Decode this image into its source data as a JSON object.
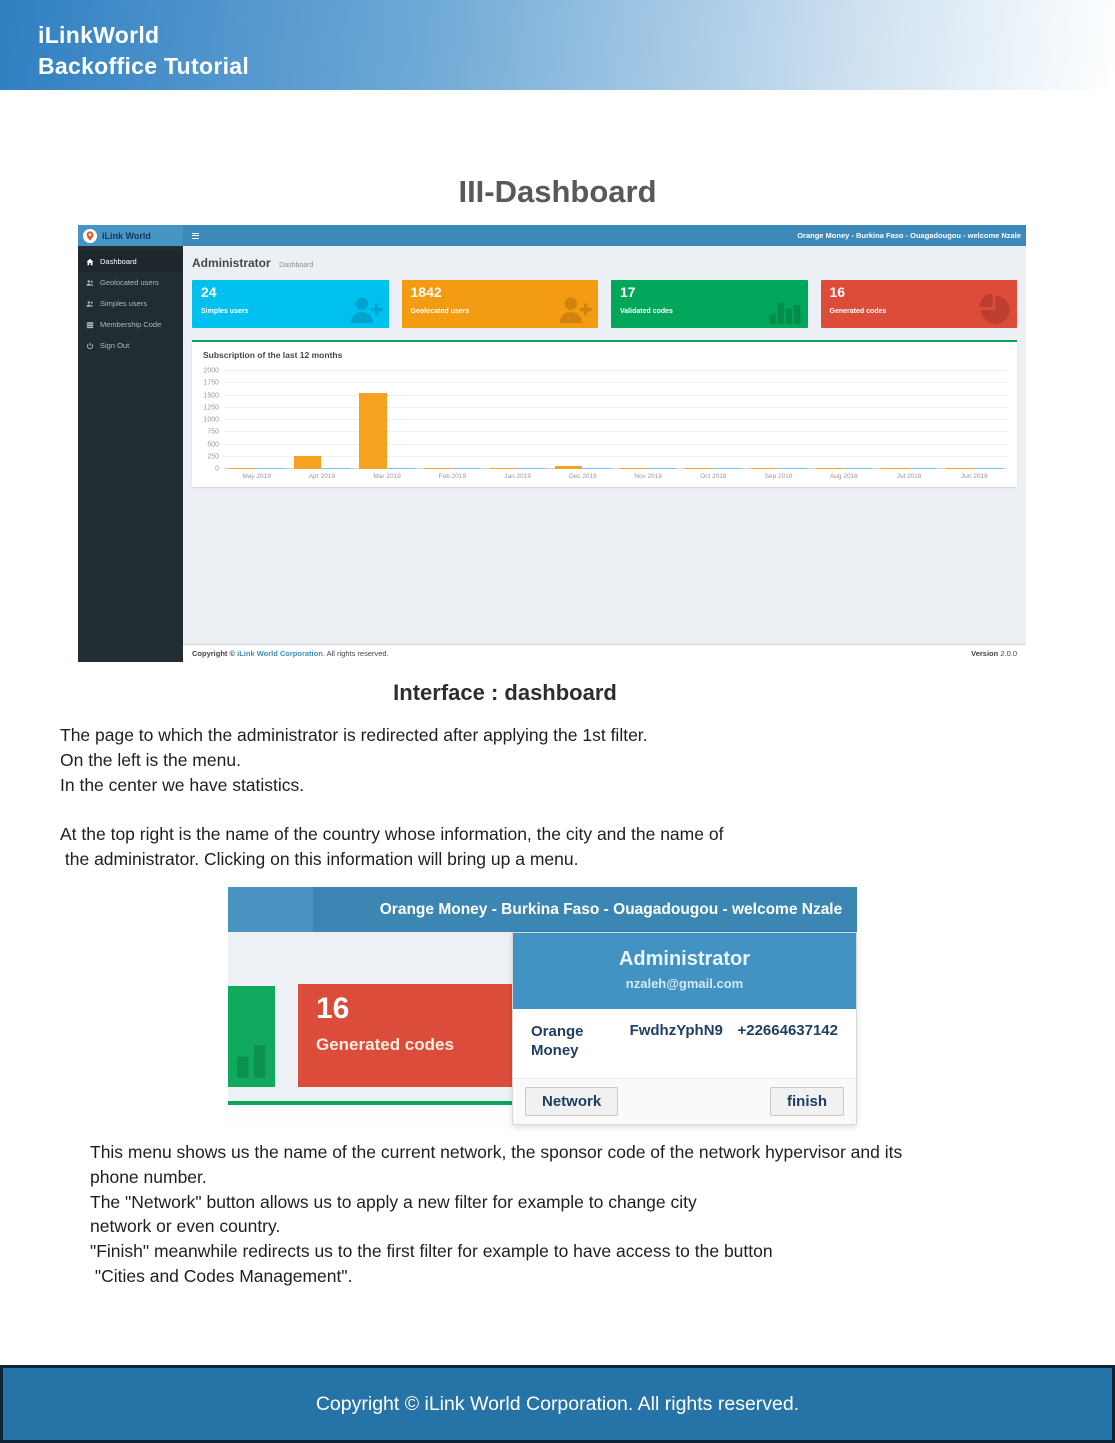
{
  "banner": {
    "title": "iLinkWorld",
    "subtitle": "Backoffice Tutorial"
  },
  "section_title": "III-Dashboard",
  "dashboard": {
    "brand": "iLink World",
    "user_info": "Orange Money - Burkina Faso - Ouagadougou - welcome Nzale",
    "sidebar": [
      {
        "label": "Dashboard",
        "icon": "home-icon",
        "active": true
      },
      {
        "label": "Geolocated users",
        "icon": "users-icon"
      },
      {
        "label": "Simples users",
        "icon": "users-icon"
      },
      {
        "label": "Membership Code",
        "icon": "list-icon"
      },
      {
        "label": "Sign Out",
        "icon": "power-icon"
      }
    ],
    "heading": {
      "title": "Administrator",
      "subtitle": "Dashboard"
    },
    "stats": [
      {
        "value": "24",
        "label": "Simples users",
        "color": "#00c0ef",
        "icon": "user-plus-icon"
      },
      {
        "value": "1842",
        "label": "Geolocated users",
        "color": "#f39c12",
        "icon": "user-plus-icon"
      },
      {
        "value": "17",
        "label": "Validated codes",
        "color": "#00a65a",
        "icon": "bar-chart-icon"
      },
      {
        "value": "16",
        "label": "Generated codes",
        "color": "#dd4b39",
        "icon": "pie-chart-icon"
      }
    ],
    "footer": {
      "prefix": "Copyright © ",
      "company": "iLink World Corporation",
      "suffix": ". All rights reserved.",
      "version_label": "Version",
      "version_value": "2.0.0"
    }
  },
  "chart_data": {
    "type": "bar",
    "title": "Subscription of the last 12 months",
    "categories": [
      "May 2019",
      "Apr 2019",
      "Mar 2019",
      "Feb 2019",
      "Jan 2019",
      "Dec 2018",
      "Nov 2018",
      "Oct 2018",
      "Sep 2018",
      "Aug 2018",
      "Jul 2018",
      "Jun 2018"
    ],
    "series": [
      {
        "name": "subscriptions",
        "color": "#f6a221",
        "values": [
          5,
          270,
          1560,
          18,
          8,
          60,
          14,
          8,
          10,
          12,
          10,
          8
        ]
      },
      {
        "name": "secondary",
        "color": "#6ec6e8",
        "values": [
          6,
          12,
          28,
          22,
          8,
          20,
          10,
          10,
          10,
          10,
          10,
          12
        ]
      }
    ],
    "ylim": [
      0,
      2000
    ],
    "yticks": [
      2000,
      1750,
      1500,
      1250,
      1000,
      750,
      500,
      250,
      0
    ],
    "grid": true,
    "legend": "none"
  },
  "interface_heading": "Interface : dashboard",
  "paragraph1": {
    "lines": [
      "The page to which the administrator is redirected after applying the 1st filter.",
      "On the left is the menu.",
      "In the center we have statistics.",
      "",
      "At the top right is the name of the country whose information, the city and the name of",
      " the administrator. Clicking on this information will bring up a menu."
    ]
  },
  "menu_shot": {
    "topbar": "Orange Money - Burkina Faso - Ouagadougou - welcome Nzale",
    "stat_red": {
      "value": "16",
      "label": "Generated codes",
      "color": "#dd4b39"
    },
    "dropdown": {
      "title": "Administrator",
      "email": "nzaleh@gmail.com",
      "network": "Orange Money",
      "sponsor_code": "FwdhzYphN9",
      "phone": "+22664637142",
      "buttons": {
        "network": "Network",
        "finish": "finish"
      }
    }
  },
  "paragraph2": {
    "lines": [
      "This menu shows us the name of the current network, the sponsor code of the network hypervisor and its",
      "phone number.",
      "The \"Network\" button allows us to apply a new filter for example to change city",
      "network or even country.",
      "\"Finish\" meanwhile redirects us to the first filter for example to have access to the button",
      " \"Cities and Codes Management\"."
    ]
  },
  "page_footer": "Copyright © iLink World Corporation. All rights reserved."
}
